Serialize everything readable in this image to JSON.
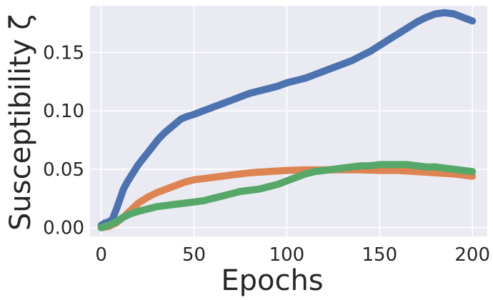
{
  "chart_data": {
    "type": "line",
    "title": "",
    "xlabel": "Epochs",
    "ylabel": "Susceptibility ζ",
    "xlim": [
      -6,
      208
    ],
    "ylim": [
      -0.0075,
      0.19
    ],
    "x_ticks": [
      0,
      50,
      100,
      150,
      200
    ],
    "x_tick_labels": [
      "0",
      "50",
      "100",
      "150",
      "200"
    ],
    "y_ticks": [
      0.0,
      0.05,
      0.1,
      0.15
    ],
    "y_tick_labels": [
      "0.00",
      "0.05",
      "0.10",
      "0.15"
    ],
    "grid": true,
    "legend": "none",
    "colors": {
      "plot_background": "#eaeaf2",
      "grid": "#ffffff",
      "text": "#262626"
    },
    "series": [
      {
        "color": "#4c72b0",
        "x": [
          0,
          2,
          4,
          6,
          8,
          10,
          12,
          14,
          16,
          18,
          20,
          22,
          25,
          28,
          31,
          34,
          37,
          40,
          43,
          46,
          50,
          55,
          60,
          65,
          70,
          75,
          80,
          85,
          90,
          95,
          100,
          105,
          110,
          115,
          120,
          125,
          130,
          135,
          140,
          145,
          150,
          155,
          160,
          165,
          170,
          175,
          180,
          185,
          190,
          195,
          200
        ],
        "y": [
          0.002,
          0.004,
          0.005,
          0.007,
          0.015,
          0.024,
          0.033,
          0.039,
          0.044,
          0.049,
          0.054,
          0.058,
          0.064,
          0.07,
          0.076,
          0.081,
          0.085,
          0.089,
          0.093,
          0.095,
          0.097,
          0.1,
          0.103,
          0.106,
          0.109,
          0.112,
          0.115,
          0.117,
          0.119,
          0.121,
          0.124,
          0.126,
          0.128,
          0.131,
          0.134,
          0.137,
          0.14,
          0.143,
          0.147,
          0.151,
          0.156,
          0.161,
          0.166,
          0.171,
          0.176,
          0.18,
          0.183,
          0.184,
          0.183,
          0.18,
          0.177
        ]
      },
      {
        "color": "#dd8452",
        "x": [
          0,
          4,
          8,
          12,
          16,
          20,
          25,
          30,
          35,
          40,
          45,
          50,
          60,
          70,
          80,
          90,
          100,
          110,
          120,
          130,
          140,
          150,
          160,
          170,
          180,
          190,
          200
        ],
        "y": [
          0.0,
          0.001,
          0.004,
          0.009,
          0.015,
          0.021,
          0.026,
          0.03,
          0.033,
          0.036,
          0.039,
          0.041,
          0.043,
          0.045,
          0.047,
          0.048,
          0.049,
          0.0495,
          0.0495,
          0.0495,
          0.0495,
          0.049,
          0.049,
          0.048,
          0.047,
          0.046,
          0.044
        ]
      },
      {
        "color": "#55a868",
        "x": [
          0,
          4,
          8,
          12,
          16,
          20,
          25,
          30,
          35,
          40,
          45,
          50,
          55,
          60,
          65,
          70,
          75,
          80,
          85,
          90,
          95,
          100,
          105,
          110,
          115,
          120,
          125,
          130,
          135,
          140,
          145,
          150,
          155,
          160,
          165,
          170,
          175,
          180,
          185,
          190,
          195,
          200
        ],
        "y": [
          0.0,
          0.002,
          0.005,
          0.009,
          0.012,
          0.014,
          0.016,
          0.018,
          0.019,
          0.02,
          0.021,
          0.022,
          0.023,
          0.025,
          0.027,
          0.029,
          0.031,
          0.032,
          0.033,
          0.035,
          0.037,
          0.04,
          0.043,
          0.046,
          0.048,
          0.049,
          0.05,
          0.051,
          0.052,
          0.053,
          0.053,
          0.054,
          0.054,
          0.054,
          0.054,
          0.053,
          0.052,
          0.052,
          0.051,
          0.05,
          0.049,
          0.048
        ]
      }
    ]
  }
}
